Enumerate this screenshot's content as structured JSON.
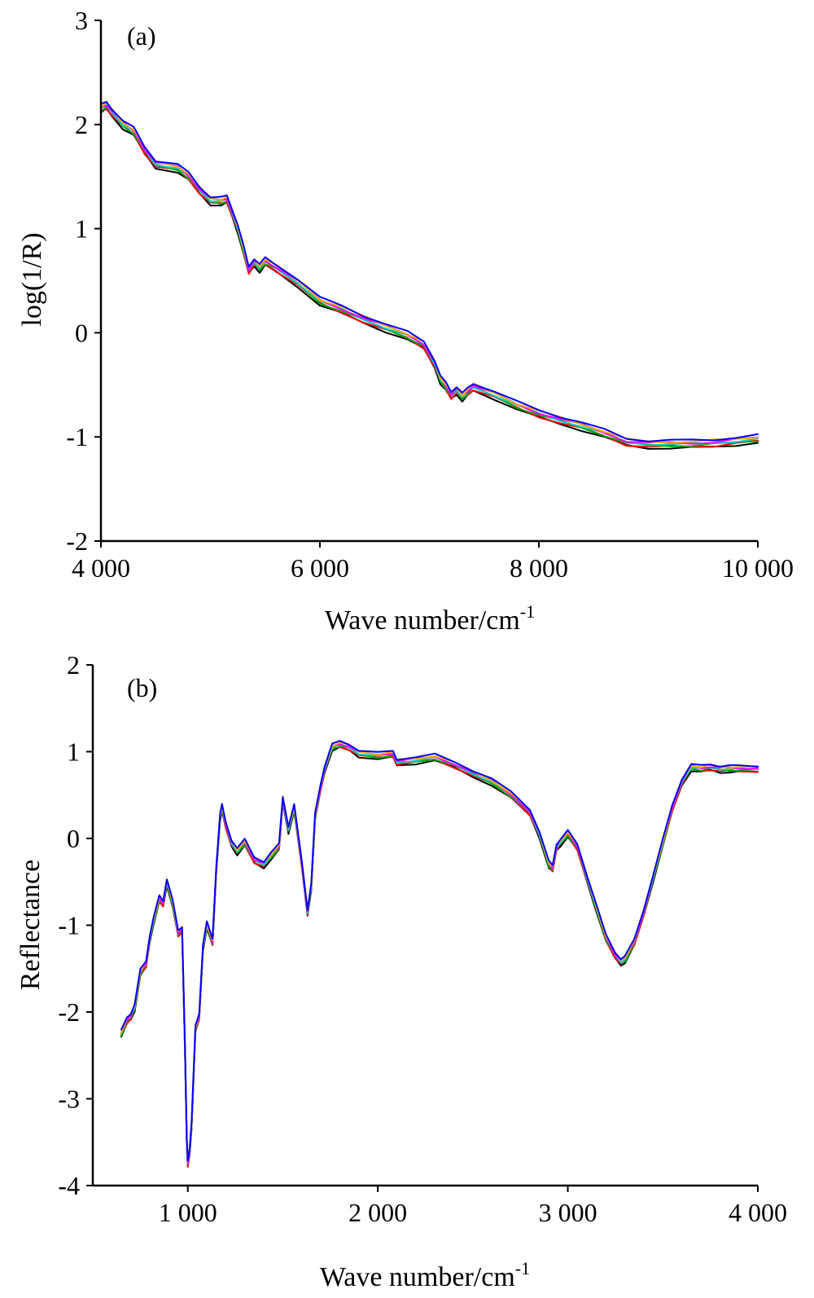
{
  "chart_data": [
    {
      "type": "line",
      "panel_label": "(a)",
      "xlabel": "Wave number/cm",
      "xlabel_sup": "-1",
      "ylabel": "log(1/R)",
      "xlim": [
        4000,
        10000
      ],
      "ylim": [
        -2,
        3
      ],
      "xticks": [
        4000,
        6000,
        8000,
        10000
      ],
      "xtick_labels": [
        "4 000",
        "6 000",
        "8 000",
        "10 000"
      ],
      "yticks": [
        -2,
        -1,
        0,
        1,
        2,
        3
      ],
      "ytick_labels": [
        "-2",
        "-1",
        "0",
        "1",
        "2",
        "3"
      ],
      "grid": false,
      "colors": [
        "#000000",
        "#ff0000",
        "#00aa00",
        "#00cccc",
        "#ff00ff",
        "#ffaa00",
        "#0000ff"
      ],
      "series_count": 7,
      "x": [
        4000,
        4050,
        4100,
        4200,
        4300,
        4400,
        4500,
        4700,
        4800,
        4900,
        5000,
        5100,
        5150,
        5200,
        5250,
        5300,
        5350,
        5400,
        5450,
        5500,
        5600,
        5800,
        6000,
        6200,
        6400,
        6600,
        6800,
        6950,
        7050,
        7100,
        7150,
        7200,
        7250,
        7300,
        7350,
        7400,
        7600,
        7800,
        8000,
        8200,
        8400,
        8600,
        8800,
        9000,
        9200,
        9400,
        9600,
        9800,
        10000
      ],
      "y": [
        2.15,
        2.18,
        2.12,
        2.0,
        1.93,
        1.75,
        1.62,
        1.58,
        1.5,
        1.37,
        1.27,
        1.26,
        1.28,
        1.15,
        1.0,
        0.8,
        0.6,
        0.68,
        0.62,
        0.68,
        0.62,
        0.48,
        0.3,
        0.22,
        0.13,
        0.05,
        -0.03,
        -0.12,
        -0.3,
        -0.45,
        -0.52,
        -0.6,
        -0.55,
        -0.62,
        -0.57,
        -0.52,
        -0.6,
        -0.7,
        -0.78,
        -0.84,
        -0.9,
        -0.97,
        -1.05,
        -1.07,
        -1.07,
        -1.07,
        -1.06,
        -1.04,
        -1.02
      ]
    },
    {
      "type": "line",
      "panel_label": "(b)",
      "xlabel": "Wave number/cm",
      "xlabel_sup": "-1",
      "ylabel": "Reflectance",
      "xlim": [
        500,
        4000
      ],
      "ylim": [
        -4,
        2
      ],
      "xticks": [
        1000,
        2000,
        3000,
        4000
      ],
      "xtick_labels": [
        "1 000",
        "2 000",
        "3 000",
        "4 000"
      ],
      "yticks": [
        -4,
        -3,
        -2,
        -1,
        0,
        1,
        2
      ],
      "ytick_labels": [
        "-4",
        "-3",
        "-2",
        "-1",
        "0",
        "1",
        "2"
      ],
      "grid": false,
      "colors": [
        "#000000",
        "#ff0000",
        "#00aa00",
        "#00cccc",
        "#ff00ff",
        "#ffaa00",
        "#0000ff"
      ],
      "series_count": 7,
      "x": [
        650,
        680,
        700,
        720,
        750,
        780,
        800,
        820,
        850,
        870,
        890,
        920,
        950,
        970,
        985,
        995,
        1000,
        1010,
        1020,
        1040,
        1060,
        1080,
        1100,
        1130,
        1150,
        1170,
        1180,
        1200,
        1230,
        1260,
        1300,
        1350,
        1400,
        1440,
        1480,
        1500,
        1530,
        1560,
        1600,
        1630,
        1650,
        1670,
        1700,
        1720,
        1760,
        1800,
        1850,
        1900,
        2000,
        2080,
        2100,
        2200,
        2300,
        2400,
        2500,
        2600,
        2700,
        2800,
        2850,
        2900,
        2920,
        2940,
        2960,
        3000,
        3050,
        3100,
        3150,
        3200,
        3250,
        3280,
        3300,
        3350,
        3400,
        3450,
        3500,
        3550,
        3600,
        3650,
        3700,
        3750,
        3800,
        3850,
        3900,
        4000
      ],
      "y": [
        -2.25,
        -2.1,
        -2.05,
        -1.95,
        -1.55,
        -1.45,
        -1.15,
        -0.95,
        -0.7,
        -0.75,
        -0.5,
        -0.75,
        -1.1,
        -1.05,
        -2.4,
        -3.5,
        -3.75,
        -3.6,
        -3.3,
        -2.2,
        -2.05,
        -1.25,
        -1.0,
        -1.2,
        -0.35,
        0.25,
        0.35,
        0.15,
        -0.05,
        -0.15,
        -0.05,
        -0.25,
        -0.3,
        -0.2,
        -0.1,
        0.45,
        0.1,
        0.35,
        -0.3,
        -0.85,
        -0.55,
        0.25,
        0.6,
        0.8,
        1.05,
        1.08,
        1.05,
        0.98,
        0.95,
        0.97,
        0.88,
        0.9,
        0.93,
        0.85,
        0.75,
        0.65,
        0.5,
        0.3,
        0.05,
        -0.3,
        -0.35,
        -0.1,
        -0.05,
        0.05,
        -0.1,
        -0.45,
        -0.8,
        -1.15,
        -1.35,
        -1.42,
        -1.4,
        -1.2,
        -0.85,
        -0.45,
        -0.05,
        0.35,
        0.65,
        0.82,
        0.8,
        0.82,
        0.8,
        0.8,
        0.8,
        0.8
      ]
    }
  ]
}
